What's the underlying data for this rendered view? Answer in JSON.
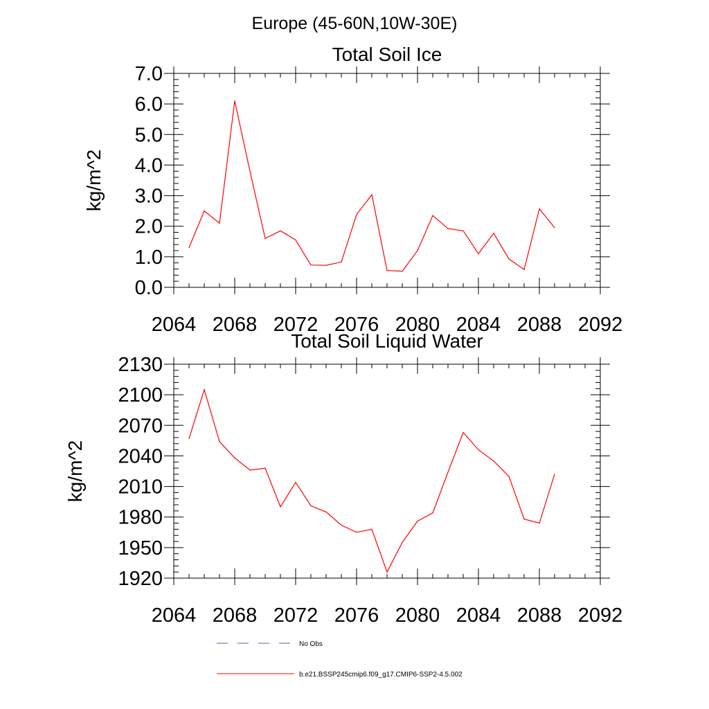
{
  "figure": {
    "title": "Europe (45-60N,10W-30E)"
  },
  "chart_data": [
    {
      "type": "line",
      "title": "Total Soil Ice",
      "xlabel": "",
      "ylabel": "kg/m^2",
      "xlim": [
        2064,
        2092
      ],
      "ylim": [
        0,
        7
      ],
      "xticks": [
        "2064",
        "2068",
        "2072",
        "2076",
        "2080",
        "2084",
        "2088",
        "2092"
      ],
      "yticks": [
        "0.0",
        "1.0",
        "2.0",
        "3.0",
        "4.0",
        "5.0",
        "6.0",
        "7.0"
      ],
      "grid": false,
      "series": [
        {
          "name": "b.e21.BSSP245cmip6.f09_g17.CMIP6-SSP2-4.5.002",
          "color": "#ff0000",
          "x": [
            2065,
            2066,
            2067,
            2068,
            2069,
            2070,
            2071,
            2072,
            2073,
            2074,
            2075,
            2076,
            2077,
            2078,
            2079,
            2080,
            2081,
            2082,
            2083,
            2084,
            2085,
            2086,
            2087,
            2088,
            2089
          ],
          "y": [
            1.3,
            2.5,
            2.1,
            6.1,
            3.8,
            1.6,
            1.85,
            1.55,
            0.73,
            0.72,
            0.83,
            2.38,
            3.03,
            0.55,
            0.53,
            1.2,
            2.35,
            1.92,
            1.85,
            1.1,
            1.77,
            0.93,
            0.58,
            2.57,
            1.95
          ]
        }
      ]
    },
    {
      "type": "line",
      "title": "Total Soil Liquid Water",
      "xlabel": "",
      "ylabel": "kg/m^2",
      "xlim": [
        2064,
        2092
      ],
      "ylim": [
        1920,
        2130
      ],
      "xticks": [
        "2064",
        "2068",
        "2072",
        "2076",
        "2080",
        "2084",
        "2088",
        "2092"
      ],
      "yticks": [
        "1920",
        "1950",
        "1980",
        "2010",
        "2040",
        "2070",
        "2100",
        "2130"
      ],
      "grid": false,
      "series": [
        {
          "name": "b.e21.BSSP245cmip6.f09_g17.CMIP6-SSP2-4.5.002",
          "color": "#ff0000",
          "x": [
            2065,
            2066,
            2067,
            2068,
            2069,
            2070,
            2071,
            2072,
            2073,
            2074,
            2075,
            2076,
            2077,
            2078,
            2079,
            2080,
            2081,
            2082,
            2083,
            2084,
            2085,
            2086,
            2087,
            2088,
            2089
          ],
          "y": [
            2057,
            2105,
            2054,
            2038,
            2026,
            2028,
            1990,
            2014,
            1991,
            1985,
            1972,
            1965,
            1968,
            1926,
            1955,
            1976,
            1984,
            2024,
            2063,
            2046,
            2035,
            2020,
            1978,
            1974,
            2022
          ]
        }
      ]
    }
  ],
  "legend": {
    "items": [
      {
        "label": "No Obs",
        "color": "#5b5fa0",
        "style": "dashed"
      },
      {
        "label": "b.e21.BSSP245cmip6.f09_g17.CMIP6-SSP2-4.5.002",
        "color": "#ff0000",
        "style": "solid"
      }
    ]
  }
}
